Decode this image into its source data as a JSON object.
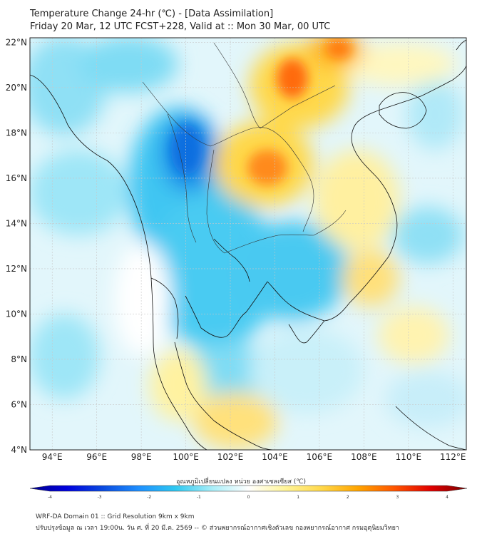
{
  "header": {
    "title": "Temperature Change 24-hr (℃) - [Data Assimilation]",
    "subtitle": "Friday 20 Mar, 12 UTC FCST+228, Valid at :: Mon 30 Mar, 00 UTC"
  },
  "map": {
    "lat_ticks": [
      "22°N",
      "20°N",
      "18°N",
      "16°N",
      "14°N",
      "12°N",
      "10°N",
      "8°N",
      "6°N",
      "4°N"
    ],
    "lon_ticks": [
      "94°E",
      "96°E",
      "98°E",
      "100°E",
      "102°E",
      "104°E",
      "106°E",
      "108°E",
      "110°E",
      "112°E"
    ],
    "lat_range": [
      4,
      22.2
    ],
    "lon_range": [
      93,
      112.6
    ]
  },
  "colorbar": {
    "label": "อุณหภูมิเปลี่ยนแปลง หน่วย องศาเซลเซียส (℃)",
    "ticks": [
      "-4",
      "-3",
      "-2",
      "-1",
      "0",
      "1",
      "2",
      "3",
      "4"
    ],
    "min": -4,
    "max": 4,
    "colors": [
      "#00008b",
      "#0000dd",
      "#0a4ae0",
      "#1e90ff",
      "#2fc8f0",
      "#a8eef8",
      "#ffffff",
      "#fff59a",
      "#ffd84a",
      "#ffa500",
      "#ff5500",
      "#e00000",
      "#7a0000"
    ]
  },
  "footer": {
    "line1": "WRF-DA Domain 01 :: Grid Resolution 9km x 9km",
    "line2": "ปรับปรุงข้อมูล ณ เวลา 19:00น. วัน ศ. ที่ 20 มี.ค. 2569 -- © ส่วนพยากรณ์อากาศเชิงตัวเลข กองพยากรณ์อากาศ กรมอุตุนิยมวิทยา"
  }
}
